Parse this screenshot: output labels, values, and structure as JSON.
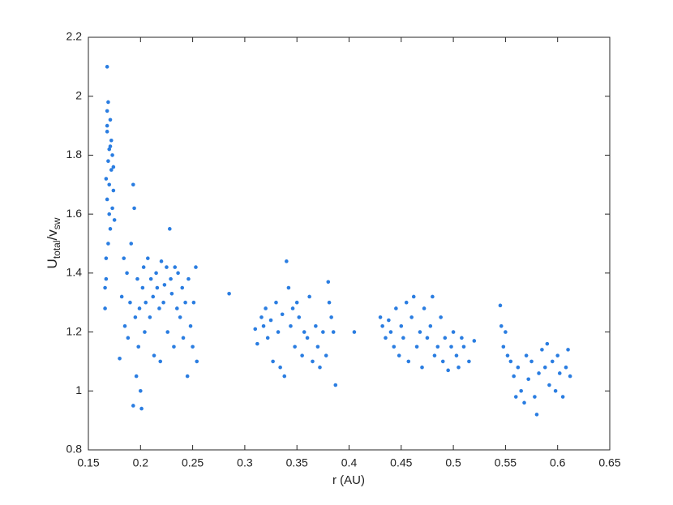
{
  "chart_data": {
    "type": "scatter",
    "xlabel": "r (AU)",
    "ylabel": [
      "U",
      "total",
      "/v",
      "sw"
    ],
    "color": "#2a7de1",
    "xlim": [
      0.15,
      0.65
    ],
    "xticks": [
      0.15,
      0.2,
      0.25,
      0.3,
      0.35,
      0.4,
      0.45,
      0.5,
      0.55,
      0.6,
      0.65
    ],
    "ylim": [
      0.8,
      2.2
    ],
    "yticks": [
      0.8,
      1,
      1.2,
      1.4,
      1.6,
      1.8,
      2,
      2.2
    ],
    "x": [
      0.166,
      0.167,
      0.167,
      0.168,
      0.168,
      0.168,
      0.169,
      0.169,
      0.17,
      0.17,
      0.17,
      0.171,
      0.171,
      0.172,
      0.172,
      0.173,
      0.173,
      0.174,
      0.174,
      0.175,
      0.167,
      0.168,
      0.169,
      0.171,
      0.166,
      0.168,
      0.18,
      0.182,
      0.184,
      0.185,
      0.187,
      0.188,
      0.19,
      0.191,
      0.193,
      0.193,
      0.194,
      0.195,
      0.196,
      0.197,
      0.198,
      0.199,
      0.2,
      0.201,
      0.202,
      0.203,
      0.204,
      0.205,
      0.207,
      0.209,
      0.21,
      0.212,
      0.213,
      0.215,
      0.216,
      0.218,
      0.219,
      0.22,
      0.222,
      0.223,
      0.225,
      0.226,
      0.228,
      0.229,
      0.23,
      0.232,
      0.233,
      0.235,
      0.236,
      0.238,
      0.24,
      0.241,
      0.243,
      0.245,
      0.246,
      0.248,
      0.25,
      0.251,
      0.253,
      0.254,
      0.285,
      0.31,
      0.312,
      0.316,
      0.318,
      0.32,
      0.322,
      0.325,
      0.327,
      0.33,
      0.332,
      0.334,
      0.336,
      0.338,
      0.34,
      0.342,
      0.344,
      0.346,
      0.348,
      0.35,
      0.352,
      0.355,
      0.357,
      0.36,
      0.362,
      0.365,
      0.368,
      0.37,
      0.372,
      0.375,
      0.378,
      0.38,
      0.381,
      0.383,
      0.385,
      0.387,
      0.405,
      0.43,
      0.432,
      0.435,
      0.438,
      0.44,
      0.443,
      0.445,
      0.448,
      0.45,
      0.452,
      0.455,
      0.457,
      0.46,
      0.462,
      0.465,
      0.468,
      0.47,
      0.472,
      0.475,
      0.478,
      0.48,
      0.482,
      0.485,
      0.488,
      0.49,
      0.492,
      0.495,
      0.498,
      0.5,
      0.503,
      0.505,
      0.508,
      0.51,
      0.515,
      0.52,
      0.545,
      0.546,
      0.548,
      0.55,
      0.552,
      0.555,
      0.558,
      0.56,
      0.562,
      0.565,
      0.568,
      0.57,
      0.572,
      0.575,
      0.578,
      0.58,
      0.582,
      0.585,
      0.588,
      0.59,
      0.592,
      0.595,
      0.598,
      0.6,
      0.602,
      0.605,
      0.608,
      0.61,
      0.612
    ],
    "values": [
      1.28,
      1.45,
      1.72,
      2.1,
      1.88,
      1.65,
      1.98,
      1.78,
      1.6,
      1.82,
      1.7,
      1.92,
      1.55,
      1.75,
      1.85,
      1.62,
      1.8,
      1.68,
      1.76,
      1.58,
      1.38,
      1.95,
      1.5,
      1.83,
      1.35,
      1.9,
      1.11,
      1.32,
      1.45,
      1.22,
      1.4,
      1.18,
      1.3,
      1.5,
      1.7,
      0.95,
      1.62,
      1.25,
      1.05,
      1.38,
      1.15,
      1.28,
      1.0,
      0.94,
      1.35,
      1.42,
      1.2,
      1.3,
      1.45,
      1.25,
      1.38,
      1.32,
      1.12,
      1.4,
      1.35,
      1.28,
      1.1,
      1.44,
      1.3,
      1.36,
      1.42,
      1.2,
      1.55,
      1.38,
      1.33,
      1.15,
      1.42,
      1.28,
      1.4,
      1.25,
      1.35,
      1.18,
      1.3,
      1.05,
      1.38,
      1.22,
      1.15,
      1.3,
      1.42,
      1.1,
      1.33,
      1.21,
      1.16,
      1.25,
      1.22,
      1.28,
      1.18,
      1.24,
      1.1,
      1.3,
      1.2,
      1.08,
      1.26,
      1.05,
      1.44,
      1.35,
      1.22,
      1.28,
      1.15,
      1.3,
      1.25,
      1.12,
      1.2,
      1.18,
      1.32,
      1.1,
      1.22,
      1.15,
      1.08,
      1.2,
      1.12,
      1.37,
      1.3,
      1.25,
      1.2,
      1.02,
      1.2,
      1.25,
      1.22,
      1.18,
      1.24,
      1.2,
      1.15,
      1.28,
      1.12,
      1.22,
      1.18,
      1.3,
      1.1,
      1.25,
      1.32,
      1.15,
      1.2,
      1.08,
      1.28,
      1.18,
      1.22,
      1.32,
      1.12,
      1.15,
      1.25,
      1.1,
      1.18,
      1.07,
      1.15,
      1.2,
      1.12,
      1.08,
      1.18,
      1.15,
      1.1,
      1.17,
      1.29,
      1.22,
      1.15,
      1.2,
      1.12,
      1.1,
      1.05,
      0.98,
      1.08,
      1.0,
      0.96,
      1.12,
      1.04,
      1.1,
      0.98,
      0.92,
      1.06,
      1.14,
      1.08,
      1.16,
      1.02,
      1.1,
      1.0,
      1.12,
      1.06,
      0.98,
      1.08,
      1.14,
      1.05
    ]
  }
}
